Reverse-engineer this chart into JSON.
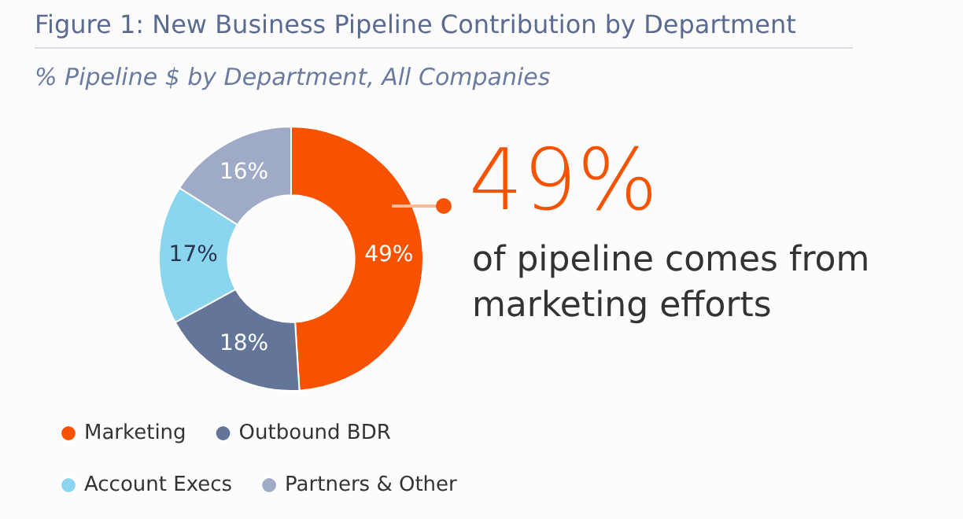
{
  "chart_data": {
    "type": "donut",
    "title": "Figure 1: New Business Pipeline Contribution by Department",
    "subtitle": "% Pipeline $ by Department, All Companies",
    "categories": [
      "Marketing",
      "Outbound BDR",
      "Account Execs",
      "Partners & Other"
    ],
    "values": [
      49,
      18,
      17,
      16
    ],
    "colors": [
      "#f75200",
      "#63769a",
      "#8ad6ee",
      "#9eaac6"
    ],
    "value_labels": [
      "49%",
      "18%",
      "17%",
      "16%"
    ],
    "annotations": [
      "49%",
      "of pipeline comes from marketing efforts"
    ],
    "legend": "bottom left"
  }
}
